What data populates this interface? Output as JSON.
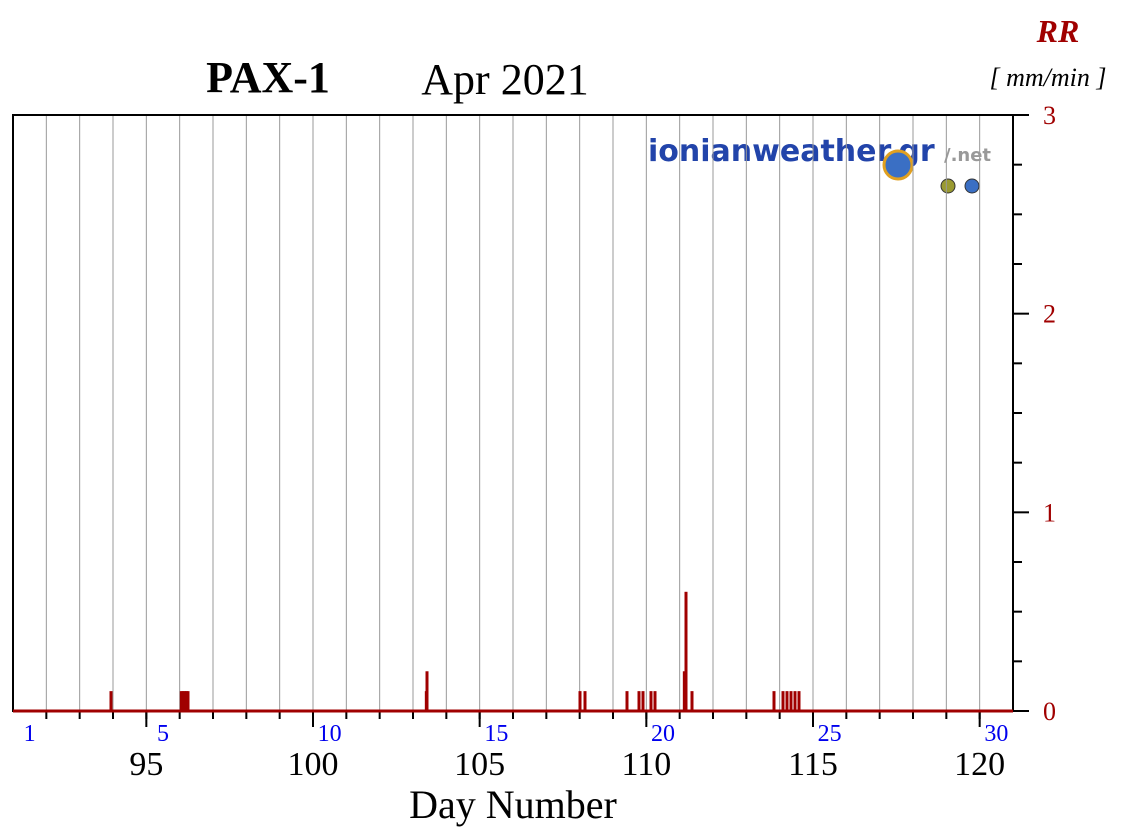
{
  "chart_data": {
    "type": "bar",
    "title": "PAX-1",
    "subtitle": "Apr 2021",
    "y_label": "RR",
    "y_unit": "[ mm/min ]",
    "x_label": "Day Number",
    "watermark": "ionianweather.gr",
    "watermark_suffix": "/.net",
    "color": "#a00000",
    "x": [
      93.94,
      96.05,
      96.1,
      96.15,
      96.2,
      96.25,
      103.4,
      103.42,
      108.01,
      108.16,
      109.42,
      109.78,
      109.9,
      110.14,
      110.26,
      111.14,
      111.19,
      111.37,
      113.83,
      114.1,
      114.22,
      114.34,
      114.46,
      114.58
    ],
    "values": [
      0.1,
      0.1,
      0.1,
      0.1,
      0.1,
      0.1,
      0.1,
      0.2,
      0.1,
      0.1,
      0.1,
      0.1,
      0.1,
      0.1,
      0.1,
      0.2,
      0.6,
      0.1,
      0.1,
      0.1,
      0.1,
      0.1,
      0.1,
      0.1
    ],
    "xlim": [
      91,
      121
    ],
    "xticks": [
      95,
      100,
      105,
      110,
      115,
      120
    ],
    "xminorticks": [
      92,
      93,
      94,
      95,
      96,
      97,
      98,
      99,
      100,
      101,
      102,
      103,
      104,
      105,
      106,
      107,
      108,
      109,
      110,
      111,
      112,
      113,
      114,
      115,
      116,
      117,
      118,
      119,
      120
    ],
    "day_labels": [
      {
        "value": 91.5,
        "label": "1"
      },
      {
        "value": 95.5,
        "label": "5"
      },
      {
        "value": 100.5,
        "label": "10"
      },
      {
        "value": 105.5,
        "label": "15"
      },
      {
        "value": 110.5,
        "label": "20"
      },
      {
        "value": 115.5,
        "label": "25"
      },
      {
        "value": 120.5,
        "label": "30"
      }
    ],
    "ylim": [
      0,
      3
    ],
    "yticks": [
      0,
      1,
      2,
      3
    ],
    "yminorticks": [
      0.25,
      0.5,
      0.75,
      1.25,
      1.5,
      1.75,
      2.25,
      2.5,
      2.75
    ],
    "grid": true
  }
}
